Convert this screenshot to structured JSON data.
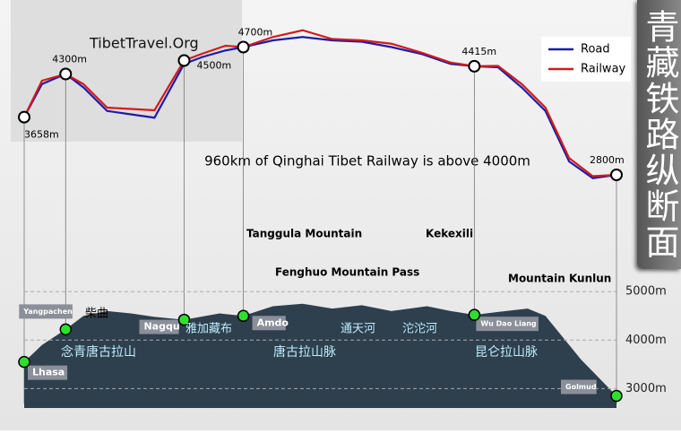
{
  "title": "青藏铁路纵断面",
  "watermark": "TibetTravel.Org",
  "chart_data": [
    {
      "type": "line",
      "subtitle": "960km of Qinghai Tibet Railway is above 4000m",
      "xlim": [
        0,
        100
      ],
      "ylim": [
        2600,
        5000
      ],
      "legend": "upper right",
      "series": [
        {
          "name": "Road",
          "color": "#1c1ca8",
          "x": [
            0,
            3,
            7,
            10,
            14,
            18,
            22,
            27,
            30,
            34,
            37,
            42,
            47,
            52,
            57,
            62,
            67,
            72,
            76,
            80,
            84,
            88,
            92,
            96,
            100
          ],
          "values": [
            3658,
            4150,
            4300,
            4100,
            3750,
            3700,
            3650,
            4450,
            4550,
            4650,
            4700,
            4800,
            4850,
            4800,
            4780,
            4700,
            4600,
            4450,
            4415,
            4400,
            4100,
            3750,
            3000,
            2750,
            2800
          ]
        },
        {
          "name": "Railway",
          "color": "#d41a1a",
          "x": [
            0,
            3,
            7,
            10,
            14,
            18,
            22,
            27,
            30,
            34,
            37,
            42,
            47,
            52,
            57,
            62,
            67,
            72,
            76,
            80,
            84,
            88,
            92,
            96,
            100
          ],
          "values": [
            3658,
            4200,
            4300,
            4150,
            3800,
            3780,
            3760,
            4500,
            4600,
            4720,
            4700,
            4850,
            4950,
            4820,
            4800,
            4750,
            4620,
            4470,
            4415,
            4420,
            4150,
            3800,
            3050,
            2780,
            2800
          ]
        }
      ],
      "points": {
        "x": [
          0,
          7,
          27,
          37,
          76,
          100
        ],
        "values": [
          3658,
          4300,
          4500,
          4700,
          4415,
          2800
        ],
        "value_labels": [
          "3658m",
          "4300m",
          "4500m",
          "4700m",
          "4415m",
          "2800m"
        ]
      }
    },
    {
      "type": "area",
      "color": "#2e3f4d",
      "grid": true,
      "xlim": [
        0,
        100
      ],
      "ylim": [
        2600,
        5300
      ],
      "yticks": [
        {
          "value": 3000,
          "label": "3000m"
        },
        {
          "value": 4000,
          "label": "4000m"
        },
        {
          "value": 5000,
          "label": "5000m"
        }
      ],
      "x": [
        0,
        3,
        7,
        10,
        14,
        18,
        22,
        27,
        33,
        37,
        42,
        47,
        52,
        57,
        62,
        68,
        72,
        76,
        80,
        85,
        88,
        94,
        100
      ],
      "values": [
        3550,
        3900,
        4220,
        4500,
        4600,
        4550,
        4480,
        4420,
        4550,
        4500,
        4700,
        4750,
        4650,
        4720,
        4600,
        4700,
        4600,
        4520,
        4580,
        4650,
        4500,
        3600,
        2850
      ],
      "stations": {
        "names": [
          "Lhasa",
          "Yangpachen",
          "Nagqu",
          "Amdo",
          "Wu Dao Liang",
          "Golmud"
        ],
        "x": [
          0,
          7,
          27,
          37,
          76,
          100
        ],
        "values": [
          3550,
          4220,
          4420,
          4500,
          4520,
          2850
        ]
      },
      "annotations": [
        "柴曲",
        "念青唐古拉山",
        "雅加藏布",
        "唐古拉山脉",
        "通天河",
        "沱沱河",
        "昆仑拉山脉",
        "Tanggula Mountain",
        "Kekexili",
        "Fenghuo Mountain Pass",
        "Mountain Kunlun"
      ]
    }
  ]
}
